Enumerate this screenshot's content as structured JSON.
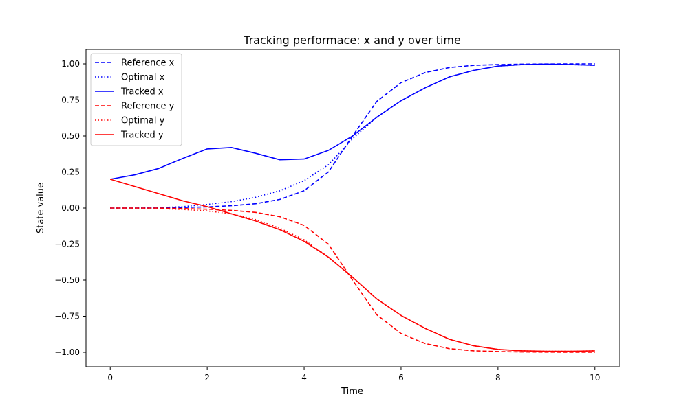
{
  "chart_data": {
    "type": "line",
    "title": "Tracking performace: x and y over time",
    "xlabel": "Time",
    "ylabel": "State value",
    "xlim": [
      -0.5,
      10.5
    ],
    "ylim": [
      -1.1,
      1.1
    ],
    "xticks": [
      0,
      2,
      4,
      6,
      8,
      10
    ],
    "xtick_labels": [
      "0",
      "2",
      "4",
      "6",
      "8",
      "10"
    ],
    "yticks": [
      -1.0,
      -0.75,
      -0.5,
      -0.25,
      0.0,
      0.25,
      0.5,
      0.75,
      1.0
    ],
    "ytick_labels": [
      "−1.00",
      "−0.75",
      "−0.50",
      "−0.25",
      "0.00",
      "0.25",
      "0.50",
      "0.75",
      "1.00"
    ],
    "grid": false,
    "legend_position": "top-left",
    "x": [
      0,
      0.5,
      1,
      1.5,
      2,
      2.5,
      3,
      3.5,
      4,
      4.5,
      5,
      5.5,
      6,
      6.5,
      7,
      7.5,
      8,
      8.5,
      9,
      9.5,
      10
    ],
    "series": [
      {
        "name": "Reference x",
        "color": "#0000ff",
        "linestyle": "dashed",
        "values": [
          0.0,
          0.0,
          0.0,
          0.004,
          0.008,
          0.016,
          0.03,
          0.06,
          0.12,
          0.25,
          0.5,
          0.74,
          0.87,
          0.94,
          0.975,
          0.99,
          0.995,
          0.998,
          0.999,
          1.0,
          1.0
        ]
      },
      {
        "name": "Optimal x",
        "color": "#0000ff",
        "linestyle": "dotted",
        "values": [
          0.0,
          0.0,
          0.003,
          0.01,
          0.025,
          0.045,
          0.075,
          0.12,
          0.19,
          0.3,
          0.48,
          0.63,
          0.745,
          0.835,
          0.91,
          0.955,
          0.985,
          0.995,
          0.998,
          0.995,
          0.99
        ]
      },
      {
        "name": "Tracked x",
        "color": "#0000ff",
        "linestyle": "solid",
        "values": [
          0.2,
          0.23,
          0.275,
          0.345,
          0.41,
          0.42,
          0.38,
          0.335,
          0.34,
          0.4,
          0.5,
          0.63,
          0.745,
          0.835,
          0.91,
          0.955,
          0.985,
          0.995,
          0.998,
          0.995,
          0.99
        ]
      },
      {
        "name": "Reference y",
        "color": "#ff0000",
        "linestyle": "dashed",
        "values": [
          0.0,
          0.0,
          0.0,
          -0.004,
          -0.008,
          -0.016,
          -0.03,
          -0.06,
          -0.12,
          -0.25,
          -0.5,
          -0.74,
          -0.87,
          -0.94,
          -0.975,
          -0.99,
          -0.995,
          -0.998,
          -0.999,
          -1.0,
          -1.0
        ]
      },
      {
        "name": "Optimal y",
        "color": "#ff0000",
        "linestyle": "dotted",
        "values": [
          0.0,
          -0.001,
          -0.004,
          -0.01,
          -0.02,
          -0.04,
          -0.08,
          -0.14,
          -0.22,
          -0.34,
          -0.48,
          -0.63,
          -0.745,
          -0.835,
          -0.91,
          -0.955,
          -0.98,
          -0.99,
          -0.993,
          -0.993,
          -0.99
        ]
      },
      {
        "name": "Tracked y",
        "color": "#ff0000",
        "linestyle": "solid",
        "values": [
          0.2,
          0.15,
          0.1,
          0.05,
          0.01,
          -0.04,
          -0.09,
          -0.15,
          -0.23,
          -0.34,
          -0.48,
          -0.63,
          -0.745,
          -0.835,
          -0.91,
          -0.955,
          -0.98,
          -0.99,
          -0.993,
          -0.993,
          -0.99
        ]
      }
    ]
  }
}
